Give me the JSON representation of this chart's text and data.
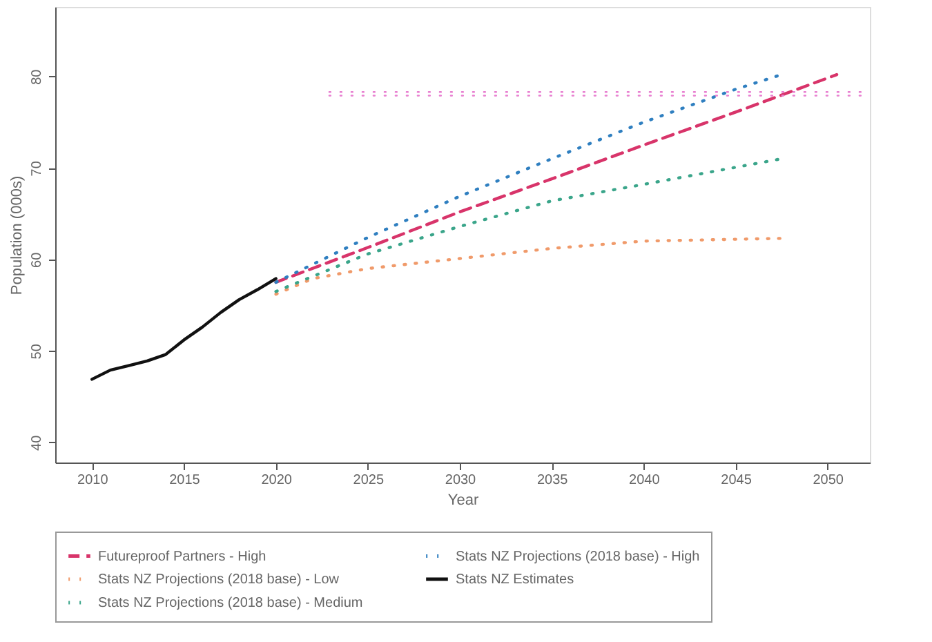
{
  "chart_data": {
    "type": "line",
    "xlabel": "Year",
    "ylabel": "Population (000s)",
    "xlim": [
      2008,
      2052.3
    ],
    "ylim": [
      37.8,
      87.6
    ],
    "xticks": [
      2010,
      2015,
      2020,
      2025,
      2030,
      2035,
      2040,
      2045,
      2050
    ],
    "yticks": [
      40,
      50,
      60,
      70,
      80
    ],
    "grid": false,
    "legend": "bottom",
    "marker": "none",
    "series": [
      {
        "name": "Futureproof Partners - High",
        "color": "#d8346a",
        "line_style": "dashed",
        "x": [
          2020,
          2025,
          2030,
          2035,
          2040,
          2045,
          2050.5
        ],
        "values": [
          57.5,
          61.3,
          65.2,
          68.8,
          72.5,
          76.1,
          80.2
        ]
      },
      {
        "name": "Stats NZ Projections (2018 base) - Low",
        "color": "#f09a6a",
        "line_style": "dotted",
        "x": [
          2020,
          2022,
          2025,
          2030,
          2035,
          2040,
          2047.5
        ],
        "values": [
          56.2,
          57.9,
          59.0,
          60.1,
          61.2,
          62.0,
          62.3
        ]
      },
      {
        "name": "Stats NZ Projections (2018 base) - Medium",
        "color": "#3aa58a",
        "line_style": "dotted",
        "x": [
          2020,
          2025,
          2030,
          2035,
          2040,
          2047.5
        ],
        "values": [
          56.5,
          60.6,
          63.6,
          66.4,
          68.2,
          71.0
        ]
      },
      {
        "name": "Stats NZ Projections (2018 base) - High",
        "color": "#2f7fc0",
        "line_style": "dotted",
        "x": [
          2020,
          2025,
          2030,
          2035,
          2040,
          2045,
          2047.5
        ],
        "values": [
          57.5,
          62.4,
          66.9,
          71.0,
          75.0,
          78.6,
          80.2
        ]
      },
      {
        "name": "Stats NZ Estimates",
        "color": "#111111",
        "line_style": "solid",
        "x": [
          2010,
          2011,
          2012,
          2013,
          2014,
          2015,
          2016,
          2017,
          2018,
          2019,
          2020
        ],
        "values": [
          46.9,
          47.9,
          48.4,
          48.9,
          49.6,
          51.2,
          52.6,
          54.2,
          55.6,
          56.7,
          57.9
        ]
      },
      {
        "color": "#e87fd0",
        "line_style": "dotted",
        "x": [
          2022.9,
          2052.3
        ],
        "values": [
          78.3,
          78.3
        ]
      },
      {
        "color": "#e87fd0",
        "line_style": "dotted",
        "x": [
          2022.9,
          2052.3
        ],
        "values": [
          77.9,
          77.9
        ]
      }
    ]
  }
}
